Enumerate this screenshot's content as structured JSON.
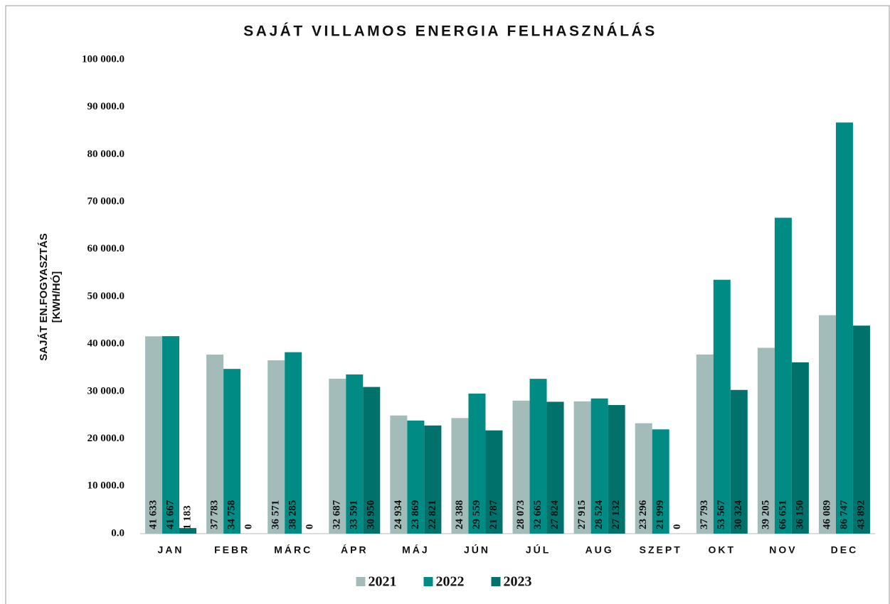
{
  "chart_data": {
    "type": "bar",
    "title": "SAJÁT VILLAMOS ENERGIA FELHASZNÁLÁS",
    "ylabel": [
      "SAJÁT EN.FOGYASZTÁS",
      "[KWH/HÓ]"
    ],
    "categories": [
      "JAN",
      "FEBR",
      "MÁRC",
      "ÁPR",
      "MÁJ",
      "JÚN",
      "JÚL",
      "AUG",
      "SZEPT",
      "OKT",
      "NOV",
      "DEC"
    ],
    "series": [
      {
        "name": "2021",
        "color": "#a3bcba",
        "values": [
          41633,
          37783,
          36571,
          32687,
          24934,
          24388,
          28073,
          27915,
          23296,
          37793,
          39205,
          46089
        ],
        "value_labels": [
          "41 633",
          "37 783",
          "36 571",
          "32 687",
          "24 934",
          "24 388",
          "28 073",
          "27 915",
          "23 296",
          "37 793",
          "39 205",
          "46 089"
        ]
      },
      {
        "name": "2022",
        "color": "#008b84",
        "values": [
          41667,
          34758,
          38285,
          33591,
          23869,
          29559,
          32665,
          28524,
          21999,
          53567,
          66651,
          86747
        ],
        "value_labels": [
          "41 667",
          "34 758",
          "38 285",
          "33 591",
          "23 869",
          "29 559",
          "32 665",
          "28 524",
          "21 999",
          "53 567",
          "66 651",
          "86 747"
        ]
      },
      {
        "name": "2023",
        "color": "#00716b",
        "values": [
          1183,
          0,
          0,
          30950,
          22821,
          21787,
          27824,
          27132,
          0,
          30324,
          36150,
          43892
        ],
        "value_labels": [
          "1 183",
          "0",
          "0",
          "30 950",
          "22 821",
          "21 787",
          "27 824",
          "27 132",
          "0",
          "30 324",
          "36 150",
          "43 892"
        ]
      }
    ],
    "ylim": [
      0,
      100000
    ],
    "yticks": [
      {
        "value": 0,
        "label": "0.0"
      },
      {
        "value": 10000,
        "label": "10 000.0"
      },
      {
        "value": 20000,
        "label": "20 000.0"
      },
      {
        "value": 30000,
        "label": "30 000.0"
      },
      {
        "value": 40000,
        "label": "40 000.0"
      },
      {
        "value": 50000,
        "label": "50 000.0"
      },
      {
        "value": 60000,
        "label": "60 000.0"
      },
      {
        "value": 70000,
        "label": "70 000.0"
      },
      {
        "value": 80000,
        "label": "80 000.0"
      },
      {
        "value": 90000,
        "label": "90 000.0"
      },
      {
        "value": 100000,
        "label": "100 000.0"
      }
    ],
    "grid": false,
    "legend": "bottom"
  }
}
